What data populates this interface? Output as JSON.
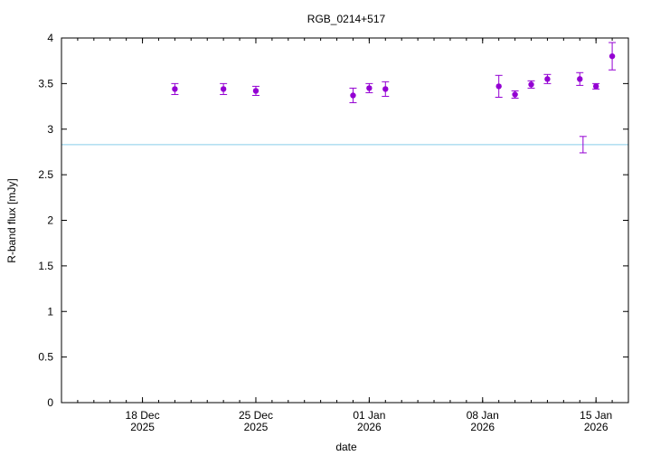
{
  "chart_data": {
    "type": "scatter",
    "title": "RGB_0214+517",
    "xlabel": "date",
    "ylabel": "R-band flux [mJy]",
    "xlim": [
      "2025-12-13",
      "2026-01-17"
    ],
    "ylim": [
      0,
      4
    ],
    "y_ticks": [
      "0",
      "0.5",
      "1",
      "1.5",
      "2",
      "2.5",
      "3",
      "3.5",
      "4"
    ],
    "x_ticks": [
      {
        "date": "2025-12-18",
        "line1": "18 Dec",
        "line2": "2025"
      },
      {
        "date": "2025-12-25",
        "line1": "25 Dec",
        "line2": "2025"
      },
      {
        "date": "2026-01-01",
        "line1": "01 Jan",
        "line2": "2026"
      },
      {
        "date": "2026-01-08",
        "line1": "08 Jan",
        "line2": "2026"
      },
      {
        "date": "2026-01-15",
        "line1": "15 Jan",
        "line2": "2026"
      }
    ],
    "grid": false,
    "reference_line": {
      "y": 2.83,
      "color": "#87ceeb"
    },
    "series": [
      {
        "color": "#9400d3",
        "points": [
          {
            "x": "2025-12-20",
            "y": 3.44,
            "err": 0.06
          },
          {
            "x": "2025-12-23",
            "y": 3.44,
            "err": 0.06
          },
          {
            "x": "2025-12-25",
            "y": 3.42,
            "err": 0.05
          },
          {
            "x": "2025-12-31",
            "y": 3.37,
            "err": 0.08
          },
          {
            "x": "2026-01-01",
            "y": 3.45,
            "err": 0.05
          },
          {
            "x": "2026-01-02",
            "y": 3.44,
            "err": 0.08
          },
          {
            "x": "2026-01-09",
            "y": 3.47,
            "err": 0.12
          },
          {
            "x": "2026-01-10",
            "y": 3.38,
            "err": 0.04
          },
          {
            "x": "2026-01-11",
            "y": 3.49,
            "err": 0.04
          },
          {
            "x": "2026-01-12",
            "y": 3.55,
            "err": 0.05
          },
          {
            "x": "2026-01-14",
            "y": 3.55,
            "err": 0.07
          },
          {
            "x": "2026-01-15",
            "y": 3.47,
            "err": 0.03
          },
          {
            "x": "2026-01-16",
            "y": 3.8,
            "err": 0.15
          }
        ]
      },
      {
        "color": "#9400d3",
        "marker": "none",
        "points": [
          {
            "x": "2026-01-14.2",
            "y": 2.83,
            "err": 0.09
          }
        ]
      }
    ]
  }
}
